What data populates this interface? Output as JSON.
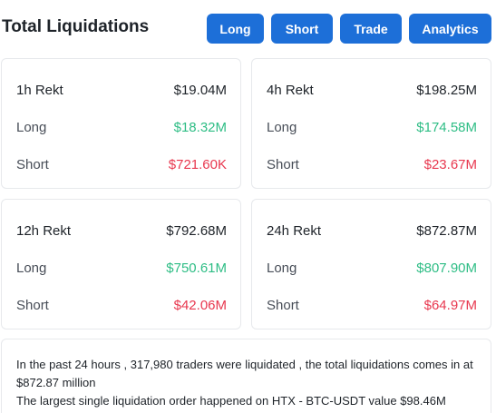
{
  "header": {
    "title": "Total Liquidations",
    "buttons": {
      "long": "Long",
      "short": "Short",
      "trade": "Trade",
      "analytics": "Analytics"
    }
  },
  "cards": [
    {
      "period_label": "1h Rekt",
      "total": "$19.04M",
      "long_label": "Long",
      "long_value": "$18.32M",
      "short_label": "Short",
      "short_value": "$721.60K"
    },
    {
      "period_label": "4h Rekt",
      "total": "$198.25M",
      "long_label": "Long",
      "long_value": "$174.58M",
      "short_label": "Short",
      "short_value": "$23.67M"
    },
    {
      "period_label": "12h Rekt",
      "total": "$792.68M",
      "long_label": "Long",
      "long_value": "$750.61M",
      "short_label": "Short",
      "short_value": "$42.06M"
    },
    {
      "period_label": "24h Rekt",
      "total": "$872.87M",
      "long_label": "Long",
      "long_value": "$807.90M",
      "short_label": "Short",
      "short_value": "$64.97M"
    }
  ],
  "summary": {
    "line1": "In the past 24 hours , 317,980 traders were liquidated , the total liquidations comes in at $872.87 million",
    "line2": "The largest single liquidation order happened on HTX - BTC-USDT value $98.46M"
  },
  "colors": {
    "button_bg": "#1d6fd8",
    "long": "#2ebd85",
    "short": "#e8384f"
  }
}
